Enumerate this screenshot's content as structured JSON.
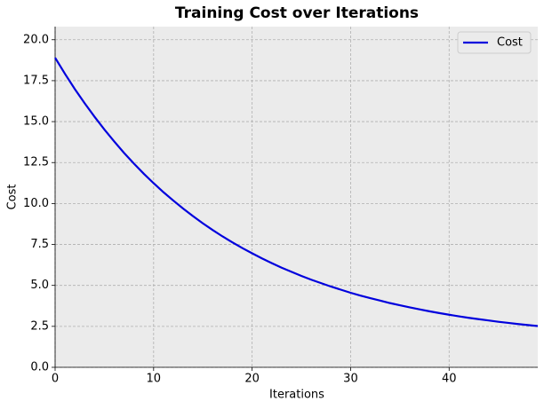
{
  "chart_data": {
    "type": "line",
    "title": "Training Cost over Iterations",
    "x_label": "Iterations",
    "y_label": "Cost",
    "x": [
      0,
      1,
      2,
      3,
      4,
      5,
      6,
      7,
      8,
      9,
      10,
      11,
      12,
      13,
      14,
      15,
      16,
      17,
      18,
      19,
      20,
      21,
      22,
      23,
      24,
      25,
      26,
      27,
      28,
      29,
      30,
      31,
      32,
      33,
      34,
      35,
      36,
      37,
      38,
      39,
      40,
      41,
      42,
      43,
      44,
      45,
      46,
      47,
      48,
      49
    ],
    "series": [
      {
        "name": "Cost",
        "color": "#0000dd",
        "values": [
          18.9,
          17.92,
          16.99,
          16.12,
          15.3,
          14.52,
          13.79,
          13.09,
          12.44,
          11.82,
          11.24,
          10.69,
          10.18,
          9.69,
          9.23,
          8.79,
          8.38,
          7.99,
          7.63,
          7.28,
          6.96,
          6.65,
          6.36,
          6.08,
          5.83,
          5.58,
          5.35,
          5.14,
          4.93,
          4.74,
          4.55,
          4.38,
          4.22,
          4.07,
          3.92,
          3.79,
          3.66,
          3.54,
          3.42,
          3.31,
          3.21,
          3.11,
          3.02,
          2.94,
          2.86,
          2.78,
          2.71,
          2.64,
          2.58,
          2.52
        ]
      }
    ],
    "xlim": [
      0,
      49
    ],
    "ylim": [
      0,
      20.8
    ],
    "xticks": [
      0,
      10,
      20,
      30,
      40
    ],
    "yticks": [
      {
        "value": 0,
        "label": "0.0"
      },
      {
        "value": 2.5,
        "label": "2.5"
      },
      {
        "value": 5,
        "label": "5.0"
      },
      {
        "value": 7.5,
        "label": "7.5"
      },
      {
        "value": 10,
        "label": "10.0"
      },
      {
        "value": 12.5,
        "label": "12.5"
      },
      {
        "value": 15,
        "label": "15.0"
      },
      {
        "value": 17.5,
        "label": "17.5"
      },
      {
        "value": 20,
        "label": "20.0"
      }
    ],
    "grid": true,
    "legend": "upper right"
  }
}
